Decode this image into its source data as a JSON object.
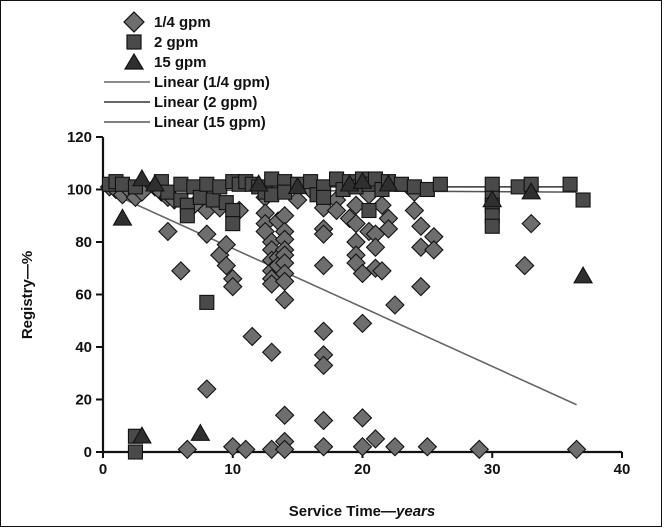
{
  "chart_data": {
    "type": "scatter",
    "xlabel": "Service Time",
    "xlabel_unit": "years",
    "ylabel": "Registry—%",
    "xlim": [
      0,
      40
    ],
    "ylim": [
      0,
      120
    ],
    "x_ticks": [
      0,
      10,
      20,
      30,
      40
    ],
    "y_ticks": [
      0,
      20,
      40,
      60,
      80,
      100,
      120
    ],
    "grid": false,
    "legend_position": "top-left",
    "legend": [
      "1/4 gpm",
      "2 gpm",
      "15 gpm",
      "Linear (1/4 gpm)",
      "Linear (2 gpm)",
      "Linear (15 gpm)"
    ],
    "series": [
      {
        "name": "1/4 gpm",
        "marker": "diamond",
        "color": "#6e6e6e",
        "points": [
          [
            0.5,
            101
          ],
          [
            1,
            100
          ],
          [
            1.5,
            98
          ],
          [
            2,
            100
          ],
          [
            2.5,
            97
          ],
          [
            3,
            99
          ],
          [
            4,
            101
          ],
          [
            4.5,
            99
          ],
          [
            5,
            97
          ],
          [
            5.5,
            96
          ],
          [
            5,
            84
          ],
          [
            6,
            69
          ],
          [
            6.5,
            1
          ],
          [
            7,
            94
          ],
          [
            7.5,
            100
          ],
          [
            8,
            92
          ],
          [
            8,
            83
          ],
          [
            8,
            24
          ],
          [
            8.5,
            99
          ],
          [
            9,
            93
          ],
          [
            9,
            75
          ],
          [
            9.5,
            71
          ],
          [
            9.5,
            79
          ],
          [
            10,
            66
          ],
          [
            10,
            63
          ],
          [
            10,
            2
          ],
          [
            10.5,
            92
          ],
          [
            11,
            1
          ],
          [
            11.5,
            44
          ],
          [
            12.5,
            97
          ],
          [
            12.5,
            91
          ],
          [
            12.5,
            87
          ],
          [
            12.5,
            84
          ],
          [
            13,
            80
          ],
          [
            13,
            77
          ],
          [
            13,
            73
          ],
          [
            13,
            69
          ],
          [
            13,
            66
          ],
          [
            13,
            38
          ],
          [
            13,
            64
          ],
          [
            13,
            1
          ],
          [
            13.5,
            100
          ],
          [
            13.5,
            88
          ],
          [
            13.5,
            74
          ],
          [
            13.5,
            71
          ],
          [
            14,
            90
          ],
          [
            14,
            84
          ],
          [
            14,
            81
          ],
          [
            14,
            77
          ],
          [
            14,
            75
          ],
          [
            14,
            72
          ],
          [
            14,
            68
          ],
          [
            14,
            65
          ],
          [
            14,
            58
          ],
          [
            14,
            14
          ],
          [
            14,
            4
          ],
          [
            14,
            1
          ],
          [
            15,
            96
          ],
          [
            16,
            100
          ],
          [
            17,
            93
          ],
          [
            17,
            85
          ],
          [
            17,
            83
          ],
          [
            17,
            71
          ],
          [
            17,
            46
          ],
          [
            17,
            37
          ],
          [
            17,
            33
          ],
          [
            17,
            12
          ],
          [
            17,
            2
          ],
          [
            18,
            96
          ],
          [
            18,
            92
          ],
          [
            19,
            89
          ],
          [
            19.5,
            94
          ],
          [
            19.5,
            87
          ],
          [
            19.5,
            80
          ],
          [
            19.5,
            75
          ],
          [
            19.5,
            72
          ],
          [
            20,
            68
          ],
          [
            20,
            49
          ],
          [
            20,
            13
          ],
          [
            20,
            2
          ],
          [
            20.5,
            98
          ],
          [
            20.5,
            84
          ],
          [
            21,
            83
          ],
          [
            21,
            78
          ],
          [
            21,
            70
          ],
          [
            21,
            5
          ],
          [
            21.5,
            94
          ],
          [
            21.5,
            69
          ],
          [
            22,
            89
          ],
          [
            22,
            85
          ],
          [
            22.5,
            56
          ],
          [
            22.5,
            2
          ],
          [
            24,
            99
          ],
          [
            24,
            92
          ],
          [
            24.5,
            86
          ],
          [
            24.5,
            78
          ],
          [
            24.5,
            63
          ],
          [
            25,
            2
          ],
          [
            25.5,
            82
          ],
          [
            25.5,
            77
          ],
          [
            29,
            1
          ],
          [
            32.5,
            71
          ],
          [
            33,
            87
          ],
          [
            36.5,
            1
          ]
        ]
      },
      {
        "name": "2 gpm",
        "marker": "square",
        "color": "#4a4a4a",
        "points": [
          [
            0.5,
            102
          ],
          [
            1,
            103
          ],
          [
            1.5,
            102
          ],
          [
            2.5,
            101
          ],
          [
            2.5,
            0
          ],
          [
            4.5,
            103
          ],
          [
            5,
            99
          ],
          [
            6,
            102
          ],
          [
            6,
            96
          ],
          [
            6.5,
            94
          ],
          [
            6.5,
            90
          ],
          [
            7,
            101
          ],
          [
            7.5,
            97
          ],
          [
            8,
            102
          ],
          [
            8,
            57
          ],
          [
            8.5,
            96
          ],
          [
            9,
            101
          ],
          [
            9.5,
            95
          ],
          [
            10,
            92
          ],
          [
            10,
            87
          ],
          [
            10,
            103
          ],
          [
            10.5,
            102
          ],
          [
            11,
            103
          ],
          [
            11.5,
            102
          ],
          [
            12,
            101
          ],
          [
            12.5,
            99
          ],
          [
            13,
            104
          ],
          [
            13,
            98
          ],
          [
            14,
            103
          ],
          [
            14,
            99
          ],
          [
            15,
            102
          ],
          [
            16,
            103
          ],
          [
            16.5,
            98
          ],
          [
            17,
            101
          ],
          [
            17,
            97
          ],
          [
            18,
            104
          ],
          [
            18.5,
            100
          ],
          [
            19,
            103
          ],
          [
            19.5,
            101
          ],
          [
            20,
            104
          ],
          [
            20.5,
            102
          ],
          [
            20.5,
            92
          ],
          [
            21,
            104
          ],
          [
            21.5,
            100
          ],
          [
            22,
            103
          ],
          [
            23,
            102
          ],
          [
            24,
            101
          ],
          [
            25,
            100
          ],
          [
            26,
            102
          ],
          [
            30,
            98
          ],
          [
            30,
            94
          ],
          [
            30,
            90
          ],
          [
            30,
            86
          ],
          [
            30,
            102
          ],
          [
            32,
            101
          ],
          [
            33,
            102
          ],
          [
            36,
            102
          ],
          [
            37,
            96
          ],
          [
            2.5,
            6
          ]
        ]
      },
      {
        "name": "15 gpm",
        "marker": "triangle",
        "color": "#2f2f2f",
        "points": [
          [
            1.5,
            89
          ],
          [
            3,
            104
          ],
          [
            3,
            6
          ],
          [
            7.5,
            7
          ],
          [
            4,
            102
          ],
          [
            12,
            102
          ],
          [
            15,
            101
          ],
          [
            19,
            102
          ],
          [
            20,
            103
          ],
          [
            22,
            102
          ],
          [
            30,
            96
          ],
          [
            33,
            99
          ],
          [
            37,
            67
          ]
        ]
      }
    ],
    "trendlines": [
      {
        "name": "Linear (1/4 gpm)",
        "x": [
          0,
          36.5
        ],
        "y": [
          100,
          18
        ],
        "color": "#666666"
      },
      {
        "name": "Linear (2 gpm)",
        "x": [
          0,
          36.5
        ],
        "y": [
          101,
          101
        ],
        "color": "#333333"
      },
      {
        "name": "Linear (15 gpm)",
        "x": [
          0,
          36.5
        ],
        "y": [
          100,
          99
        ],
        "color": "#555555"
      }
    ]
  }
}
